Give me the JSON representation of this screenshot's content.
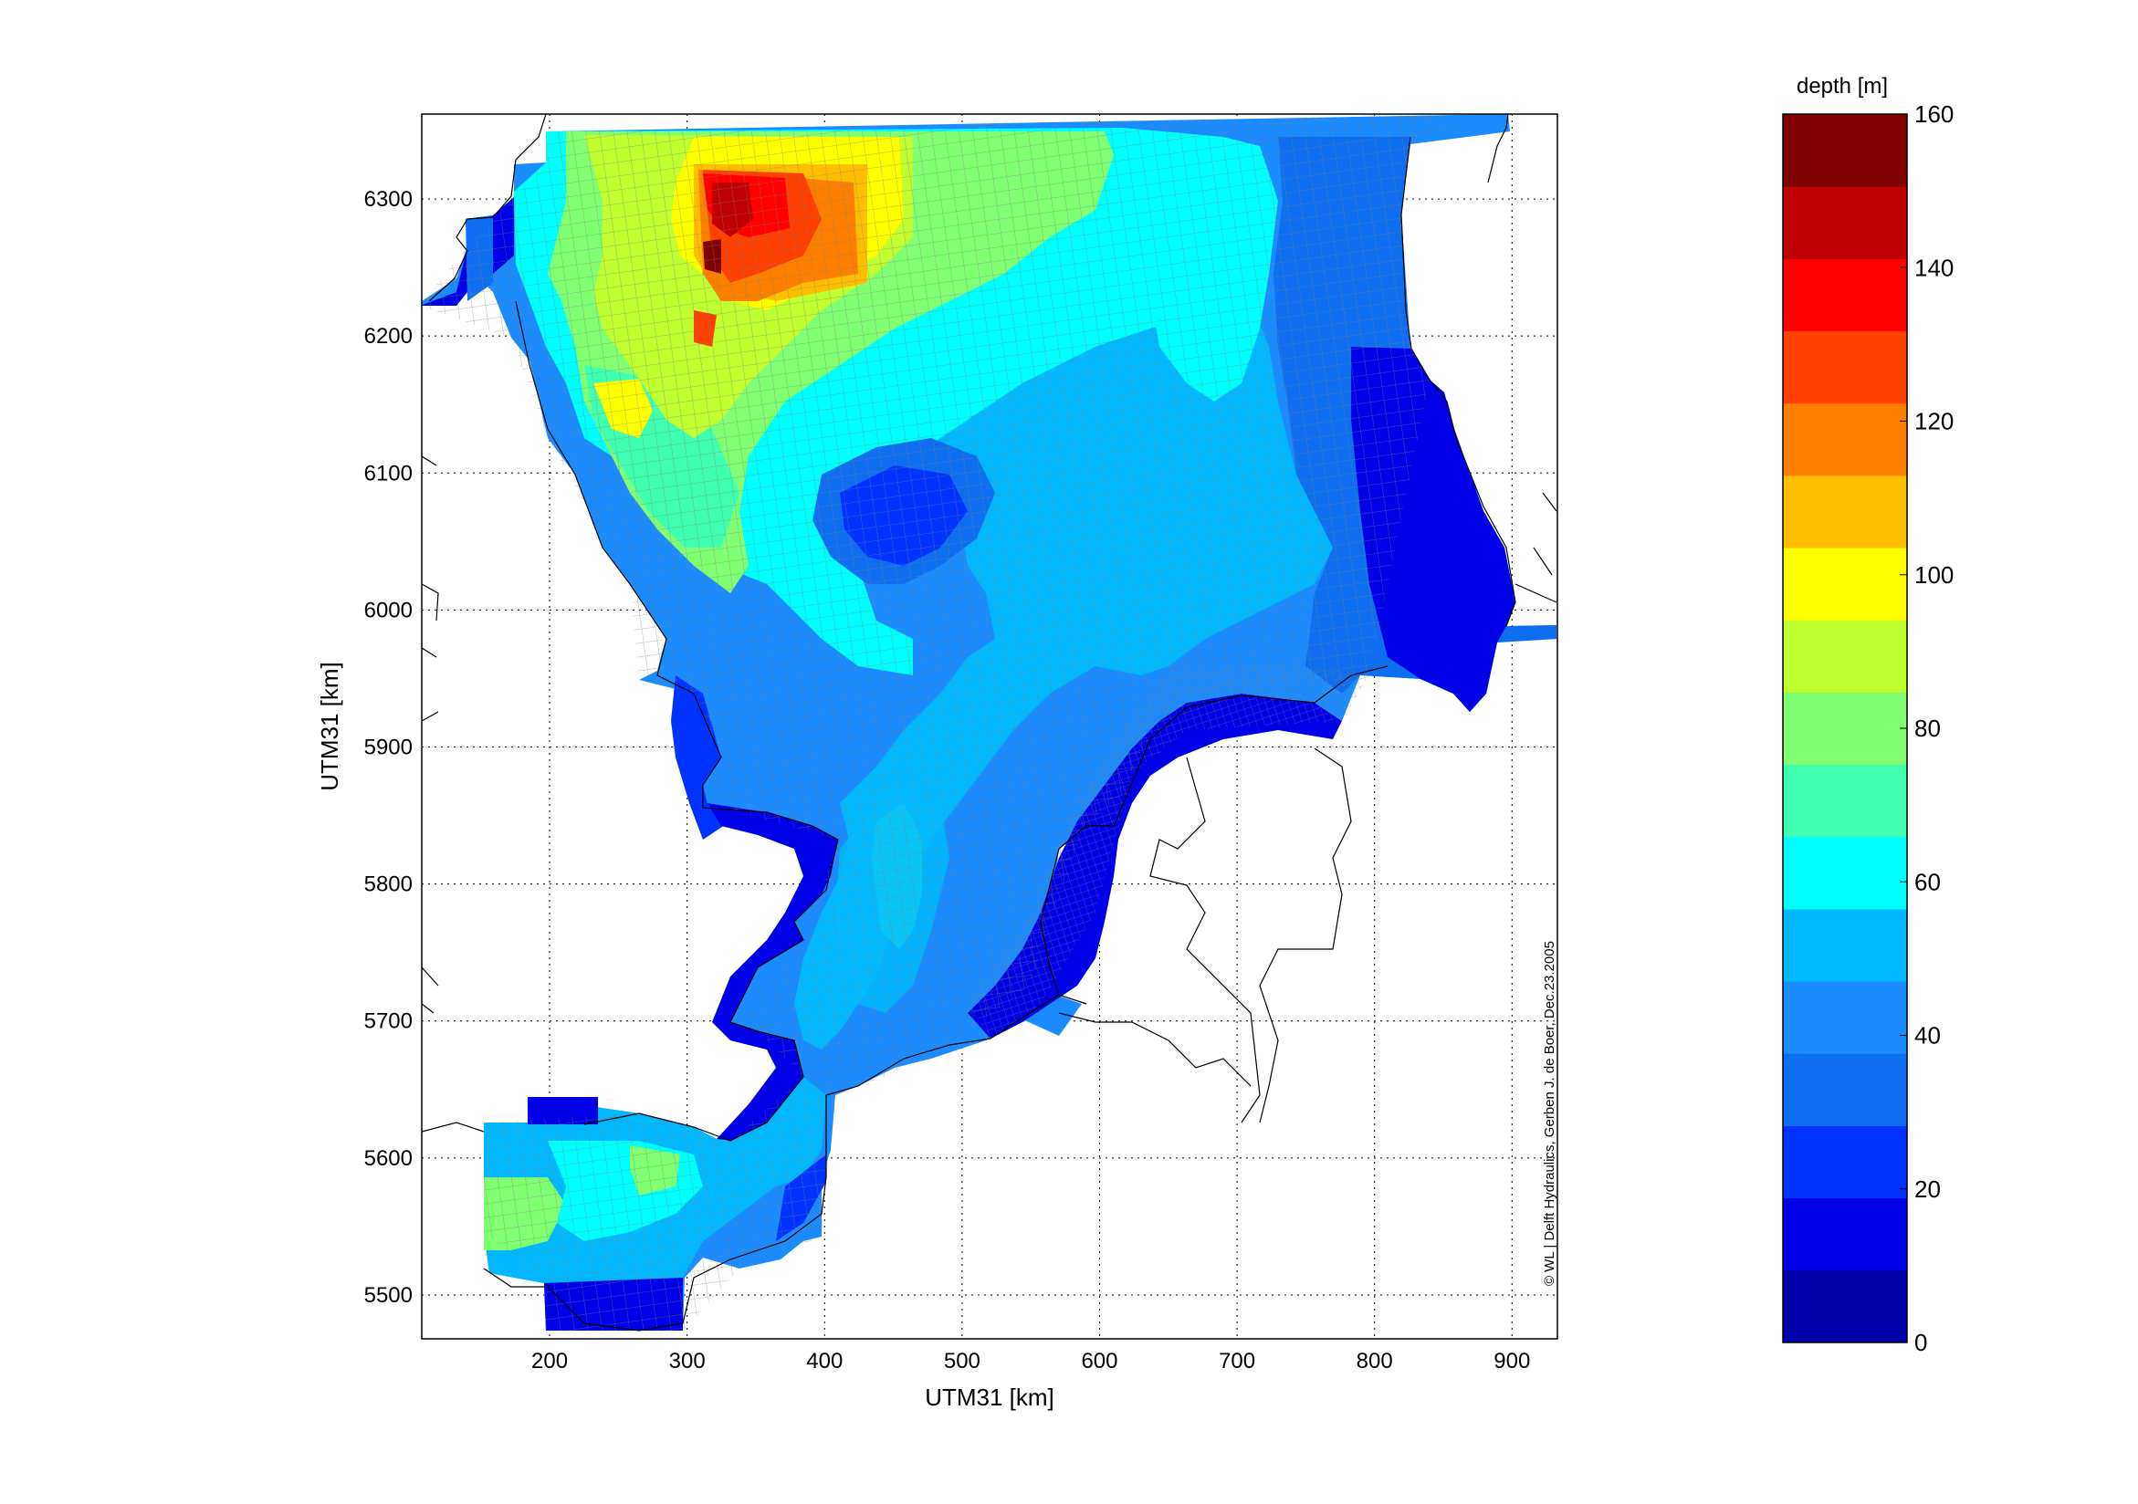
{
  "map": {
    "xlabel": "UTM31 [km]",
    "ylabel": "UTM31 [km]",
    "x_ticks": [
      "200",
      "300",
      "400",
      "500",
      "600",
      "700",
      "800",
      "900"
    ],
    "y_ticks": [
      "5500",
      "5600",
      "5700",
      "5800",
      "5900",
      "6000",
      "6100",
      "6200",
      "6300"
    ],
    "x_range_km": [
      107,
      933
    ],
    "y_range_km": [
      5468,
      6362
    ],
    "grid": "dotted",
    "credit": "© WL | Delft Hydraulics, Gerben J. de Boer, Dec.23.2005"
  },
  "colorbar": {
    "title": "depth [m]",
    "tick_labels": [
      "0",
      "20",
      "40",
      "60",
      "80",
      "100",
      "120",
      "140",
      "160"
    ],
    "range_m": [
      0,
      160
    ],
    "colors": [
      "#0000aa",
      "#0000e6",
      "#0033ff",
      "#0d6fef",
      "#1a8cff",
      "#00b8ff",
      "#00ffff",
      "#40ffb0",
      "#80ff72",
      "#c0ff30",
      "#ffff00",
      "#ffbf00",
      "#ff8000",
      "#ff4000",
      "#ff0000",
      "#c00000",
      "#800000"
    ]
  }
}
